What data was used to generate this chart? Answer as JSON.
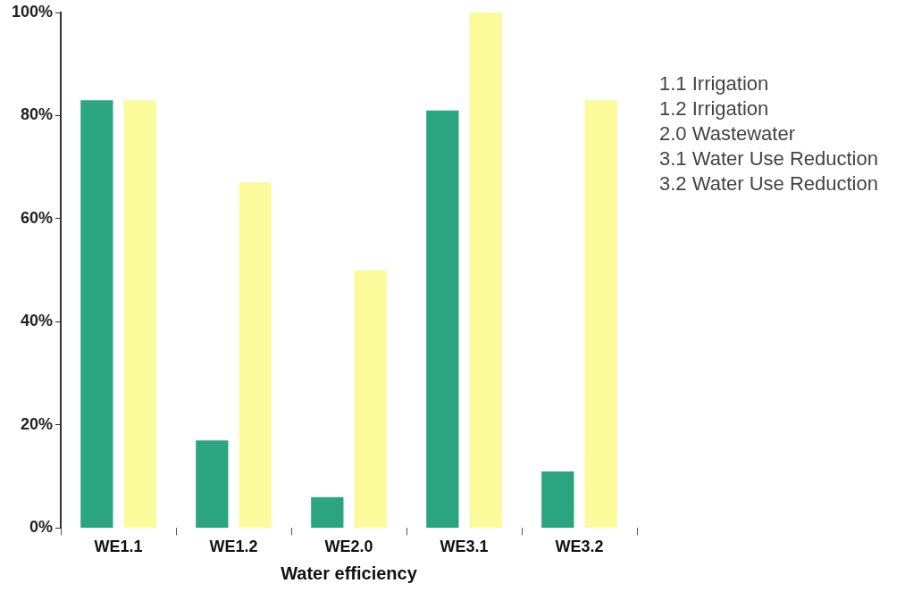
{
  "chart_data": {
    "type": "bar",
    "categories": [
      "WE1.1",
      "WE1.2",
      "WE2.0",
      "WE3.1",
      "WE3.2"
    ],
    "series": [
      {
        "color": "#2ba57f",
        "values": [
          83,
          17,
          6,
          81,
          11
        ]
      },
      {
        "color": "#fbfb9c",
        "values": [
          83,
          67,
          50,
          100,
          83
        ]
      }
    ],
    "xlabel": "Water efficiency",
    "ylim": [
      0,
      100
    ],
    "yticks": [
      {
        "value": 0,
        "label": "0%"
      },
      {
        "value": 20,
        "label": "20%"
      },
      {
        "value": 40,
        "label": "40%"
      },
      {
        "value": 60,
        "label": "60%"
      },
      {
        "value": 80,
        "label": "80%"
      },
      {
        "value": 100,
        "label": "100%"
      }
    ],
    "annotations": [
      "1.1 Irrigation",
      "1.2 Irrigation",
      "2.0 Wastewater",
      "3.1 Water Use Reduction",
      "3.2 Water Use Reduction"
    ],
    "grid": false,
    "legend": false
  }
}
